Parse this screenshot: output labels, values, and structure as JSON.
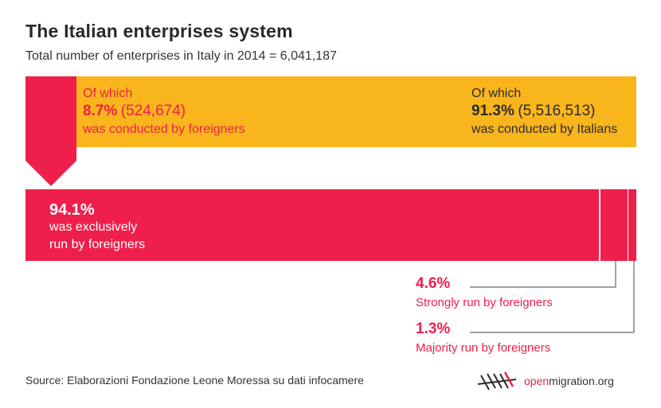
{
  "title": "The Italian enterprises system",
  "subtitle": "Total number of enterprises in Italy in 2014 = 6,041,187",
  "colors": {
    "red": "#ee1f4b",
    "yellow": "#f9b51c",
    "text": "#2b2b2b"
  },
  "foreigners": {
    "prefix": "Of which",
    "percent": "8.7%",
    "count": "(524,674)",
    "suffix": "was conducted by foreigners"
  },
  "italians": {
    "prefix": "Of which",
    "percent": "91.3%",
    "count": "(5,516,513)",
    "suffix": "was conducted by Italians"
  },
  "exclusive": {
    "percent": "94.1%",
    "line1": "was exclusively",
    "line2": "run by foreigners"
  },
  "strongly": {
    "percent": "4.6%",
    "label": "Strongly run by foreigners"
  },
  "majority": {
    "percent": "1.3%",
    "label": "Majority run by foreigners"
  },
  "source": "Source: Elaborazioni Fondazione Leone Moressa su dati infocamere",
  "logo": {
    "open": "open",
    "rest": "migration.org"
  },
  "chart_data": [
    {
      "type": "bar",
      "title": "The Italian enterprises system",
      "subtitle": "Total number of enterprises in Italy in 2014 = 6,041,187",
      "total": 6041187,
      "categories": [
        "conducted by foreigners",
        "conducted by Italians"
      ],
      "values": [
        8.7,
        91.3
      ],
      "counts": [
        524674,
        5516513
      ],
      "unit": "%"
    },
    {
      "type": "bar",
      "categories": [
        "exclusively run by foreigners",
        "Strongly run by foreigners",
        "Majority run by foreigners"
      ],
      "values": [
        94.1,
        4.6,
        1.3
      ],
      "unit": "%"
    }
  ]
}
